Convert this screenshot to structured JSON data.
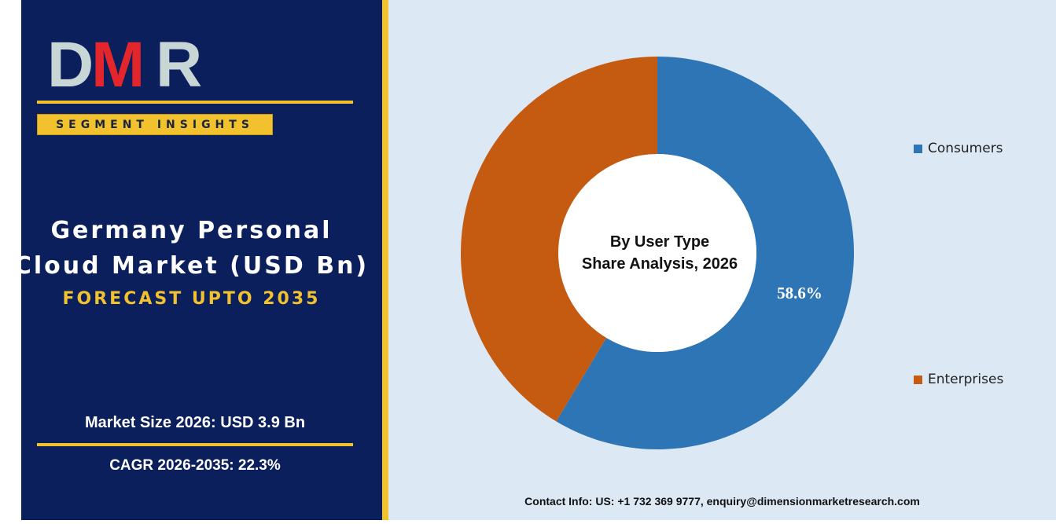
{
  "brand": {
    "logo_text": "DMR",
    "segment_label": "SEGMENT INSIGHTS"
  },
  "report": {
    "title_line1": "Germany Personal",
    "title_line2": "Cloud Market (USD Bn)",
    "subtitle": "FORECAST UPTO 2035",
    "market_size": "Market Size 2026: USD 3.9 Bn",
    "cagr": "CAGR 2026-2035: 22.3%"
  },
  "colors": {
    "panel_bg": "#0b1f5c",
    "accent_gold": "#f2c12e",
    "chart_bg": "#dce8f4",
    "consumers": "#2e75b6",
    "enterprises": "#c55a11"
  },
  "chart_data": {
    "type": "pie",
    "variant": "donut",
    "title_line1": "By User Type",
    "title_line2": "Share Analysis, 2026",
    "series": [
      {
        "name": "Consumers",
        "value": 58.6,
        "color": "#2e75b6",
        "label": "58.6%"
      },
      {
        "name": "Enterprises",
        "value": 41.4,
        "color": "#c55a11",
        "label": ""
      }
    ],
    "legend_position": "right"
  },
  "footer": {
    "contact": "Contact Info: US: +1 732 369 9777, enquiry@dimensionmarketresearch.com"
  }
}
